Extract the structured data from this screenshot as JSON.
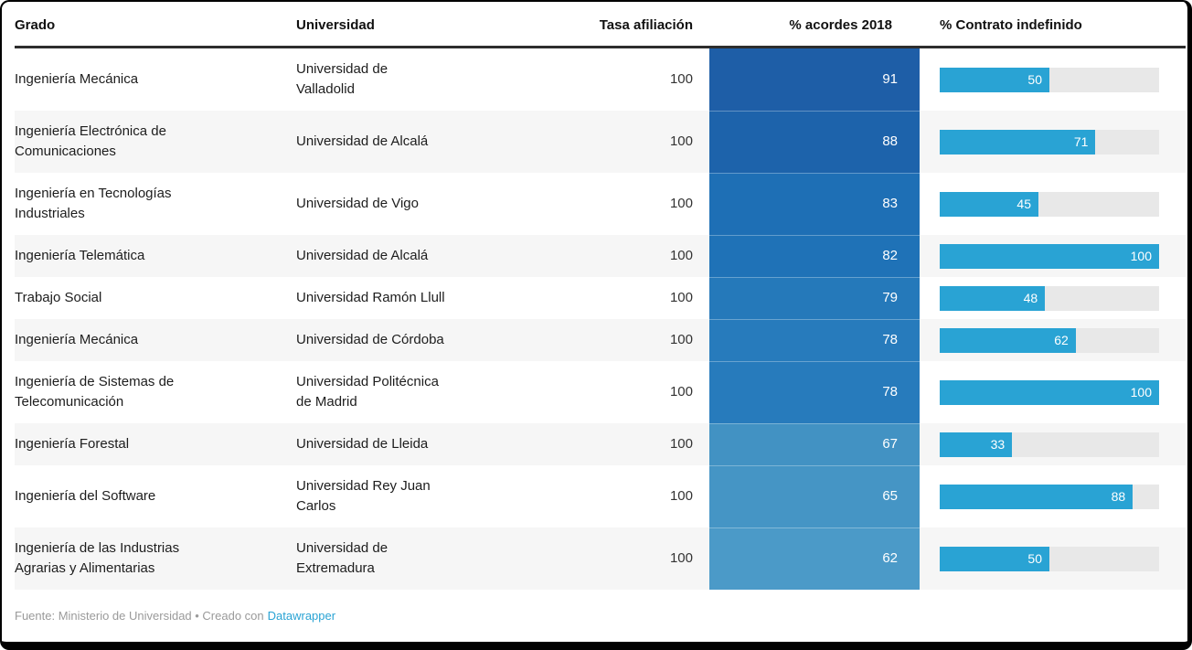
{
  "chart_data": {
    "type": "table",
    "title": "",
    "columns": [
      "Grado",
      "Universidad",
      "Tasa afiliación",
      "% acordes 2018",
      "% Contrato indefinido"
    ],
    "column_styles": {
      "Tasa afiliación": "number-right-aligned",
      "% acordes 2018": "heatmap-blue",
      "% Contrato indefinido": "bar-0-100"
    },
    "rows": [
      {
        "grado": "Ingeniería Mecánica",
        "universidad": "Universidad de\nValladolid",
        "tasa": "100",
        "acordes": 91,
        "heat_color": "#1e5ea7",
        "contrato": 50
      },
      {
        "grado": "Ingeniería Electrónica de\nComunicaciones",
        "universidad": "Universidad de Alcalá",
        "tasa": "100",
        "acordes": 88,
        "heat_color": "#1d63ab",
        "contrato": 71
      },
      {
        "grado": "Ingeniería en Tecnologías\nIndustriales",
        "universidad": "Universidad de Vigo",
        "tasa": "100",
        "acordes": 83,
        "heat_color": "#1e6fb5",
        "contrato": 45
      },
      {
        "grado": "Ingeniería Telemática",
        "universidad": "Universidad de Alcalá",
        "tasa": "100",
        "acordes": 82,
        "heat_color": "#1f72b7",
        "contrato": 100
      },
      {
        "grado": "Trabajo Social",
        "universidad": "Universidad Ramón Llull",
        "tasa": "100",
        "acordes": 79,
        "heat_color": "#2579ba",
        "contrato": 48
      },
      {
        "grado": "Ingeniería Mecánica",
        "universidad": "Universidad de Córdoba",
        "tasa": "100",
        "acordes": 78,
        "heat_color": "#277bbc",
        "contrato": 62
      },
      {
        "grado": "Ingeniería de Sistemas de\nTelecomunicación",
        "universidad": "Universidad Politécnica\nde Madrid",
        "tasa": "100",
        "acordes": 78,
        "heat_color": "#277bbc",
        "contrato": 100
      },
      {
        "grado": "Ingeniería Forestal",
        "universidad": "Universidad de Lleida",
        "tasa": "100",
        "acordes": 67,
        "heat_color": "#4292c3",
        "contrato": 33
      },
      {
        "grado": "Ingeniería del Software",
        "universidad": "Universidad Rey Juan\nCarlos",
        "tasa": "100",
        "acordes": 65,
        "heat_color": "#4595c5",
        "contrato": 88
      },
      {
        "grado": "Ingeniería de las Industrias\nAgrarias y Alimentarias",
        "universidad": "Universidad de\nExtremadura",
        "tasa": "100",
        "acordes": 62,
        "heat_color": "#4b9ac8",
        "contrato": 50
      }
    ]
  },
  "footer": {
    "text": "Fuente: Ministerio de Universidad • Creado con",
    "link_label": "Datawrapper"
  },
  "colors": {
    "bar_fill": "#29a3d4",
    "bar_track": "#e8e8e8",
    "stripe": "#f6f6f6",
    "header_rule": "#2d2d2d",
    "link": "#29a3d4"
  }
}
